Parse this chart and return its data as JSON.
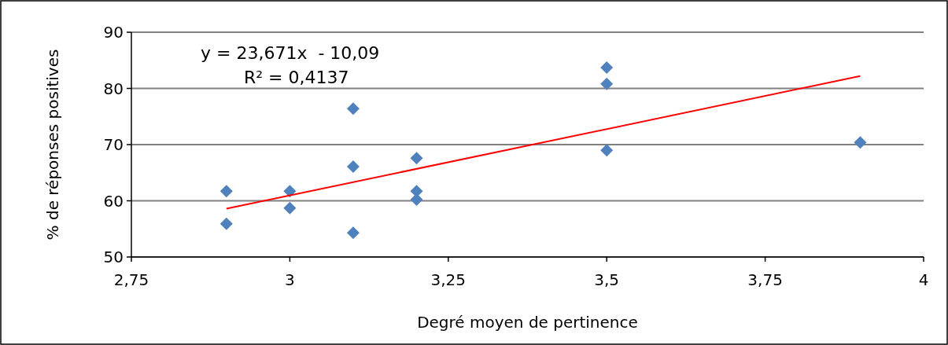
{
  "chart_data": {
    "type": "scatter",
    "xlabel": "Degré moyen de pertinence",
    "ylabel": "% de réponses positives",
    "annotations": [
      "y = 23,671x  - 10,09",
      "R² = 0,4137"
    ],
    "xlim": [
      2.75,
      4
    ],
    "xticks": [
      {
        "value": 2.75,
        "label": "2,75"
      },
      3,
      {
        "value": 3.25,
        "label": "3,25"
      },
      {
        "value": 3.5,
        "label": "3,5"
      },
      {
        "value": 3.75,
        "label": "3,75"
      },
      4
    ],
    "ylim": [
      50,
      90
    ],
    "yticks": [
      50,
      60,
      70,
      80,
      90
    ],
    "grid": "y",
    "series": [
      {
        "marker": "diamond",
        "color": "#4f81bd",
        "x": [
          2.9,
          2.9,
          3.0,
          3.0,
          3.1,
          3.1,
          3.1,
          3.2,
          3.2,
          3.2,
          3.5,
          3.5,
          3.5,
          3.9
        ],
        "values": [
          61.7,
          55.9,
          61.7,
          58.7,
          76.4,
          66.1,
          54.3,
          67.6,
          61.7,
          60.2,
          83.7,
          80.8,
          69.0,
          70.4
        ]
      },
      {
        "type": "line",
        "marker": "none",
        "color": "#ff0000",
        "x": [
          2.9,
          3.9
        ],
        "values": [
          58.6,
          82.2
        ]
      }
    ]
  }
}
